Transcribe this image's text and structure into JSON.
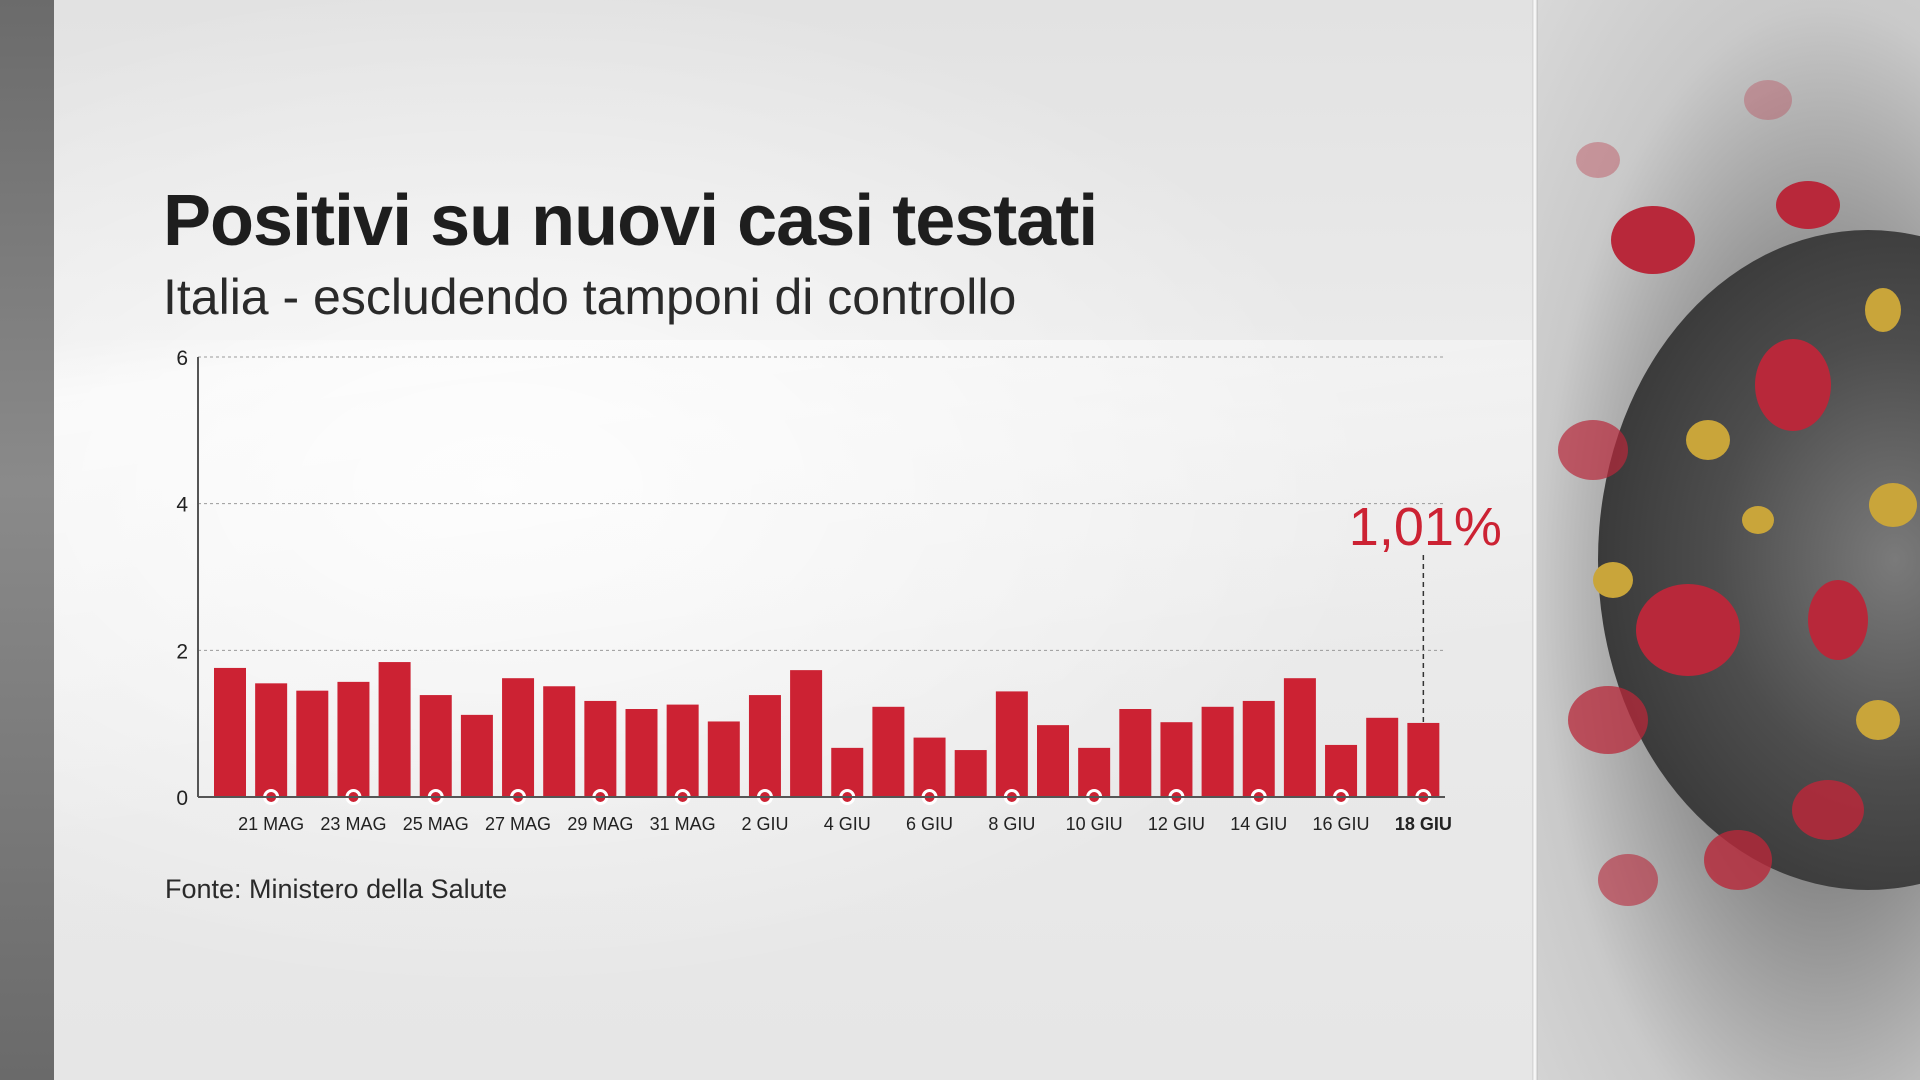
{
  "title": "Positivi su nuovi casi testati",
  "subtitle": "Italia - escludendo tamponi di controllo",
  "source": "Fonte: Ministero della Salute",
  "colors": {
    "bar": "#cc2233",
    "highlight": "#cc2233",
    "text": "#222222"
  },
  "chart_data": {
    "type": "bar",
    "title": "Positivi su nuovi casi testati",
    "ylim": [
      0,
      6
    ],
    "yticks": [
      "0",
      "2",
      "4",
      "6"
    ],
    "grid": true,
    "categories": [
      "20 MAG",
      "21 MAG",
      "22 MAG",
      "23 MAG",
      "24 MAG",
      "25 MAG",
      "26 MAG",
      "27 MAG",
      "28 MAG",
      "29 MAG",
      "30 MAG",
      "31 MAG",
      "1 GIU",
      "2 GIU",
      "3 GIU",
      "4 GIU",
      "5 GIU",
      "6 GIU",
      "7 GIU",
      "8 GIU",
      "9 GIU",
      "10 GIU",
      "11 GIU",
      "12 GIU",
      "13 GIU",
      "14 GIU",
      "15 GIU",
      "16 GIU",
      "17 GIU",
      "18 GIU"
    ],
    "values": [
      1.76,
      1.55,
      1.45,
      1.57,
      1.84,
      1.39,
      1.12,
      1.62,
      1.51,
      1.31,
      1.2,
      1.26,
      1.03,
      1.39,
      1.73,
      0.67,
      1.23,
      0.81,
      0.64,
      1.44,
      0.98,
      0.67,
      1.2,
      1.02,
      1.23,
      1.31,
      1.62,
      0.71,
      1.08,
      1.01
    ],
    "xtick_labels": [
      "21 MAG",
      "23 MAG",
      "25 MAG",
      "27 MAG",
      "29 MAG",
      "31 MAG",
      "2 GIU",
      "4 GIU",
      "6 GIU",
      "8 GIU",
      "10 GIU",
      "12 GIU",
      "14 GIU",
      "16 GIU",
      "18 GIU"
    ],
    "xtick_indices": [
      1,
      3,
      5,
      7,
      9,
      11,
      13,
      15,
      17,
      19,
      21,
      23,
      25,
      27,
      29
    ],
    "highlight": {
      "index": 29,
      "label": "1,01%"
    }
  }
}
